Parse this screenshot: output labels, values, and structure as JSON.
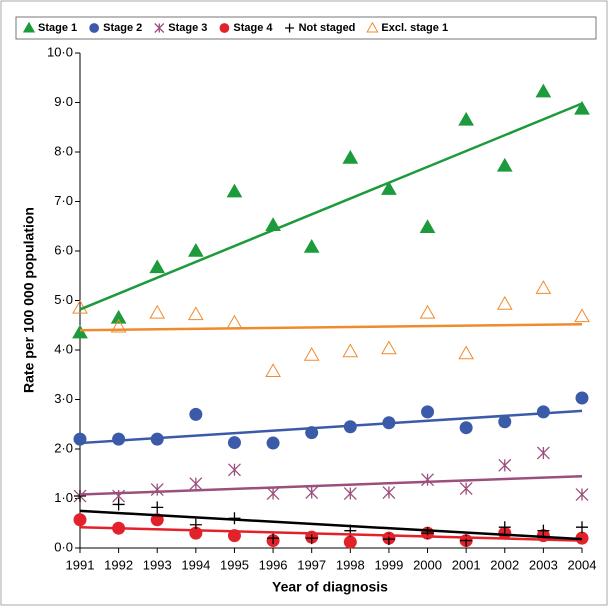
{
  "chart_data": {
    "type": "scatter",
    "x_label": "Year of diagnosis",
    "y_label": "Rate per 100 000 population",
    "x": [
      1991,
      1992,
      1993,
      1994,
      1995,
      1996,
      1997,
      1998,
      1999,
      2000,
      2001,
      2002,
      2003,
      2004
    ],
    "xlim": [
      1991,
      2004
    ],
    "xticks": [
      1991,
      1992,
      1993,
      1994,
      1995,
      1996,
      1997,
      1998,
      1999,
      2000,
      2001,
      2002,
      2003,
      2004
    ],
    "ylim": [
      0,
      10
    ],
    "yticks": [
      {
        "value": 0,
        "label": "0·0"
      },
      {
        "value": 1,
        "label": "1·0"
      },
      {
        "value": 2,
        "label": "2·0"
      },
      {
        "value": 3,
        "label": "3·0"
      },
      {
        "value": 4,
        "label": "4·0"
      },
      {
        "value": 5,
        "label": "5·0"
      },
      {
        "value": 6,
        "label": "6·0"
      },
      {
        "value": 7,
        "label": "7·0"
      },
      {
        "value": 8,
        "label": "8·0"
      },
      {
        "value": 9,
        "label": "9·0"
      },
      {
        "value": 10,
        "label": "10·0"
      }
    ],
    "grid": false,
    "legend": "top",
    "series": [
      {
        "name": "Stage 1",
        "color": "#1d9a3c",
        "marker": "triangle",
        "values": [
          4.35,
          4.65,
          5.67,
          6.0,
          7.2,
          6.52,
          6.08,
          7.88,
          7.25,
          6.48,
          8.65,
          7.72,
          9.22,
          8.87
        ],
        "trend": [
          4.82,
          8.98
        ]
      },
      {
        "name": "Stage 2",
        "color": "#3b5ba9",
        "marker": "circle",
        "values": [
          2.2,
          2.2,
          2.2,
          2.7,
          2.13,
          2.12,
          2.33,
          2.45,
          2.53,
          2.75,
          2.43,
          2.55,
          2.75,
          3.03
        ],
        "trend": [
          2.12,
          2.77
        ]
      },
      {
        "name": "Stage 3",
        "color": "#9b4f7c",
        "marker": "asterisk",
        "values": [
          1.05,
          1.05,
          1.18,
          1.3,
          1.58,
          1.1,
          1.12,
          1.1,
          1.12,
          1.38,
          1.2,
          1.67,
          1.92,
          1.08
        ],
        "trend": [
          1.08,
          1.45
        ]
      },
      {
        "name": "Stage 4",
        "color": "#e3212b",
        "marker": "circle",
        "values": [
          0.57,
          0.4,
          0.57,
          0.3,
          0.25,
          0.15,
          0.22,
          0.12,
          0.2,
          0.3,
          0.15,
          0.3,
          0.25,
          0.2
        ],
        "trend": [
          0.42,
          0.15
        ]
      },
      {
        "name": "Not staged",
        "color": "#000000",
        "marker": "plus",
        "values": [
          1.05,
          0.88,
          0.82,
          0.47,
          0.6,
          0.2,
          0.2,
          0.35,
          0.18,
          0.3,
          0.15,
          0.42,
          0.35,
          0.42
        ],
        "trend": [
          0.75,
          0.18
        ]
      },
      {
        "name": "Excl. stage 1",
        "color": "#f08a2e",
        "marker": "open-triangle",
        "values": [
          4.85,
          4.47,
          4.75,
          4.72,
          4.55,
          3.57,
          3.9,
          3.97,
          4.03,
          4.75,
          3.93,
          4.93,
          5.25,
          4.68
        ],
        "trend": [
          4.4,
          4.52
        ]
      }
    ]
  }
}
